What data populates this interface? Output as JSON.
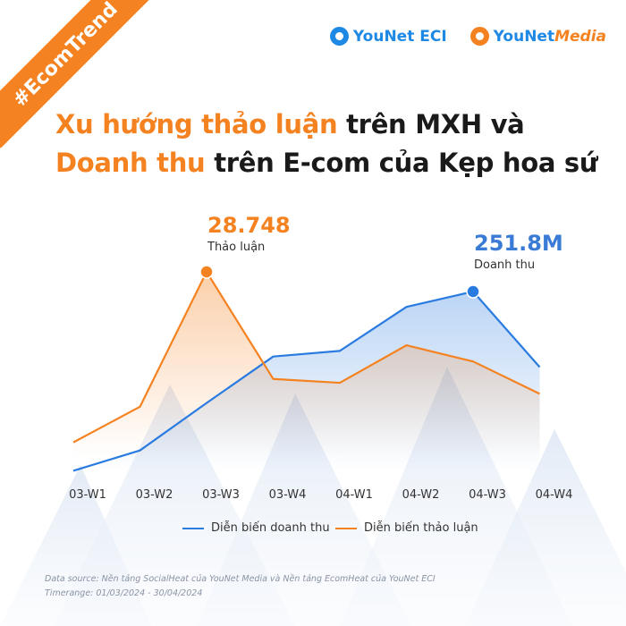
{
  "badge": "#EcomTrend",
  "logos": [
    {
      "name": "YouNet ECI",
      "color": "#1e88e5"
    },
    {
      "name": "YouNet",
      "accent": "Media",
      "color": "#1e88e5",
      "accent_color": "#f58220"
    }
  ],
  "title": {
    "line1_highlight": "Xu hướng thảo luận",
    "line1_rest": " trên MXH và",
    "line2_highlight": "Doanh thu",
    "line2_rest": " trên E-com của Kẹp hoa sứ"
  },
  "annotations": {
    "discussion_peak": {
      "value": "28.748",
      "label": "Thảo luận"
    },
    "revenue_peak": {
      "value": "251.8M",
      "label": "Doanh thu"
    }
  },
  "legend": {
    "revenue": "Diễn biến doanh thu",
    "discussion": "Diễn biến thảo luận"
  },
  "colors": {
    "accent": "#f58220",
    "blue": "#2a7be0",
    "text": "#1a1a1a"
  },
  "chart_data": {
    "type": "line",
    "categories": [
      "03-W1",
      "03-W2",
      "03-W3",
      "03-W4",
      "04-W1",
      "04-W2",
      "04-W3",
      "04-W4"
    ],
    "series": [
      {
        "name": "Diễn biến doanh thu",
        "color": "#2a7be0",
        "values": [
          2.0,
          30.3,
          96.4,
          161.2,
          169.1,
          230.4,
          251.8,
          146.5
        ]
      },
      {
        "name": "Diễn biến thảo luận",
        "color": "#f58220",
        "values": [
          2.4,
          7.9,
          28.748,
          12.2,
          11.6,
          17.4,
          14.9,
          9.9
        ]
      }
    ],
    "annotated_points": [
      {
        "series": 1,
        "index": 2,
        "label": "28.748"
      },
      {
        "series": 0,
        "index": 6,
        "label": "251.8M"
      }
    ]
  },
  "footnote": {
    "source": "Data source: Nền tảng SocialHeat của YouNet Media và Nền tảng EcomHeat của YouNet ECI",
    "timerange": "Timerange: 01/03/2024 - 30/04/2024"
  }
}
